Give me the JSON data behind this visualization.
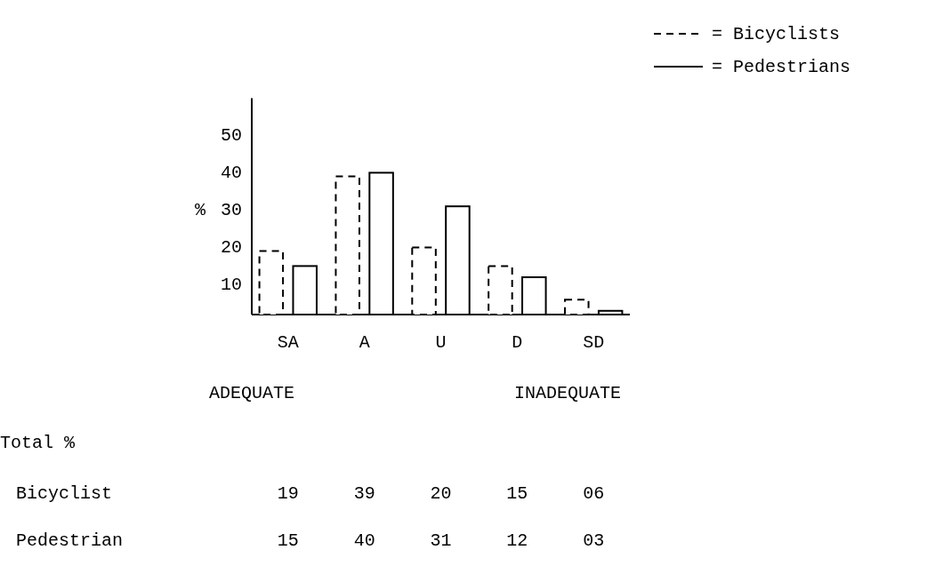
{
  "chart_data": {
    "type": "bar",
    "ylabel": "%",
    "categories": [
      "SA",
      "A",
      "U",
      "D",
      "SD"
    ],
    "series": [
      {
        "name": "= Bicyclists",
        "color": "#000000",
        "line_style": "dashed",
        "values": [
          19,
          39,
          20,
          15,
          6
        ],
        "value_labels": [
          "19",
          "39",
          "20",
          "15",
          "06"
        ]
      },
      {
        "name": "= Pedestrians",
        "color": "#000000",
        "line_style": "solid",
        "values": [
          15,
          40,
          31,
          12,
          3
        ],
        "value_labels": [
          "15",
          "40",
          "31",
          "12",
          "03"
        ]
      }
    ],
    "ylim": [
      2,
      60
    ],
    "yticks": [
      10,
      20,
      30,
      40,
      50
    ],
    "grid": false,
    "legend": "top right",
    "annotations": [
      "ADEQUATE",
      "INADEQUATE",
      "Total %",
      "Bicyclist",
      "Pedestrian"
    ]
  }
}
